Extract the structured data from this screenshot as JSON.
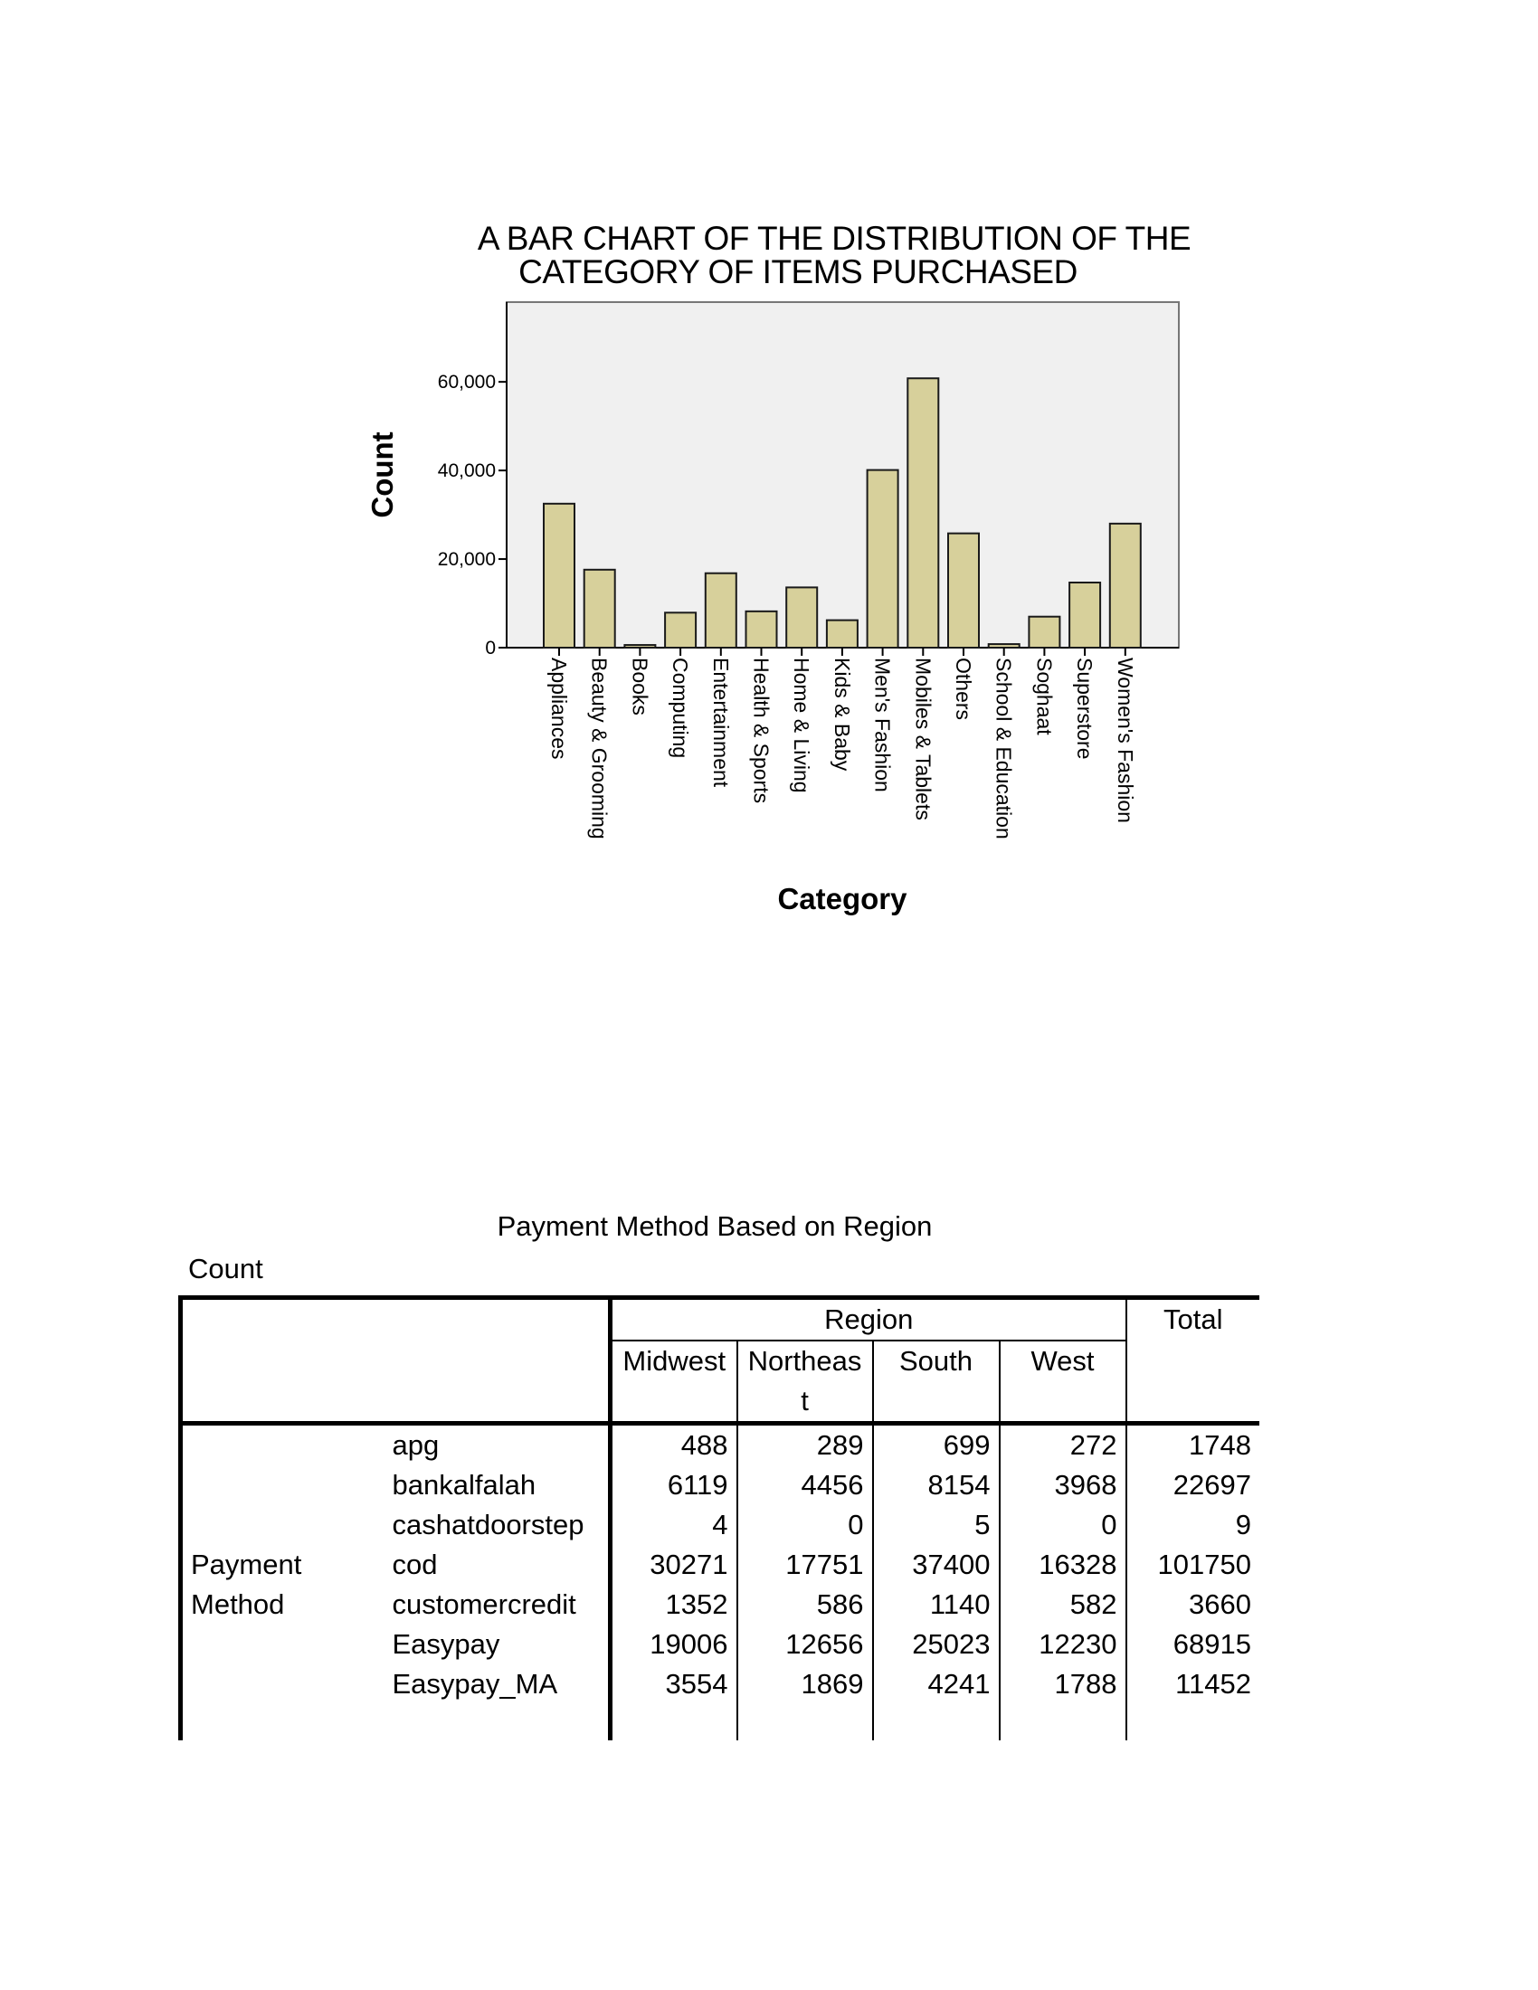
{
  "chart_data": {
    "type": "bar",
    "title": [
      "A BAR CHART OF THE DISTRIBUTION OF THE",
      "CATEGORY OF ITEMS PURCHASED"
    ],
    "xlabel": "Category",
    "ylabel": "Count",
    "ylim": [
      0,
      78000
    ],
    "yticks": [
      0,
      20000,
      40000,
      60000
    ],
    "ytick_labels": [
      "0",
      "20,000",
      "40,000",
      "60,000"
    ],
    "categories": [
      "Appliances",
      "Beauty & Grooming",
      "Books",
      "Computing",
      "Entertainment",
      "Health & Sports",
      "Home & Living",
      "Kids & Baby",
      "Men's Fashion",
      "Mobiles & Tablets",
      "Others",
      "School & Education",
      "Soghaat",
      "Superstore",
      "Women's Fashion"
    ],
    "values": [
      32500,
      17600,
      600,
      7900,
      16800,
      8200,
      13600,
      6200,
      40100,
      60800,
      25800,
      800,
      7000,
      14700,
      28000
    ],
    "grid": false,
    "legend": "none",
    "colors": {
      "bar_fill": "#d7d09b",
      "bar_stroke": "#1a1a1a",
      "plot_bg": "#f0f0f0",
      "plot_border": "#777777"
    }
  },
  "table": {
    "caption": "Payment Method Based on Region",
    "count_label": "Count",
    "header": {
      "region": "Region",
      "total": "Total",
      "columns": [
        "Midwest",
        "Northeas\nt",
        "South",
        "West"
      ]
    },
    "row_group_label": "Payment\nMethod",
    "rows": [
      {
        "label": "apg",
        "values": [
          "488",
          "289",
          "699",
          "272"
        ],
        "total": "1748"
      },
      {
        "label": "bankalfalah",
        "values": [
          "6119",
          "4456",
          "8154",
          "3968"
        ],
        "total": "22697"
      },
      {
        "label": "cashatdoorstep",
        "values": [
          "4",
          "0",
          "5",
          "0"
        ],
        "total": "9"
      },
      {
        "label": "cod",
        "values": [
          "30271",
          "17751",
          "37400",
          "16328"
        ],
        "total": "101750"
      },
      {
        "label": "customercredit",
        "values": [
          "1352",
          "586",
          "1140",
          "582"
        ],
        "total": "3660"
      },
      {
        "label": "Easypay",
        "values": [
          "19006",
          "12656",
          "25023",
          "12230"
        ],
        "total": "68915"
      },
      {
        "label": "Easypay_MA",
        "values": [
          "3554",
          "1869",
          "4241",
          "1788"
        ],
        "total": "11452"
      }
    ]
  }
}
